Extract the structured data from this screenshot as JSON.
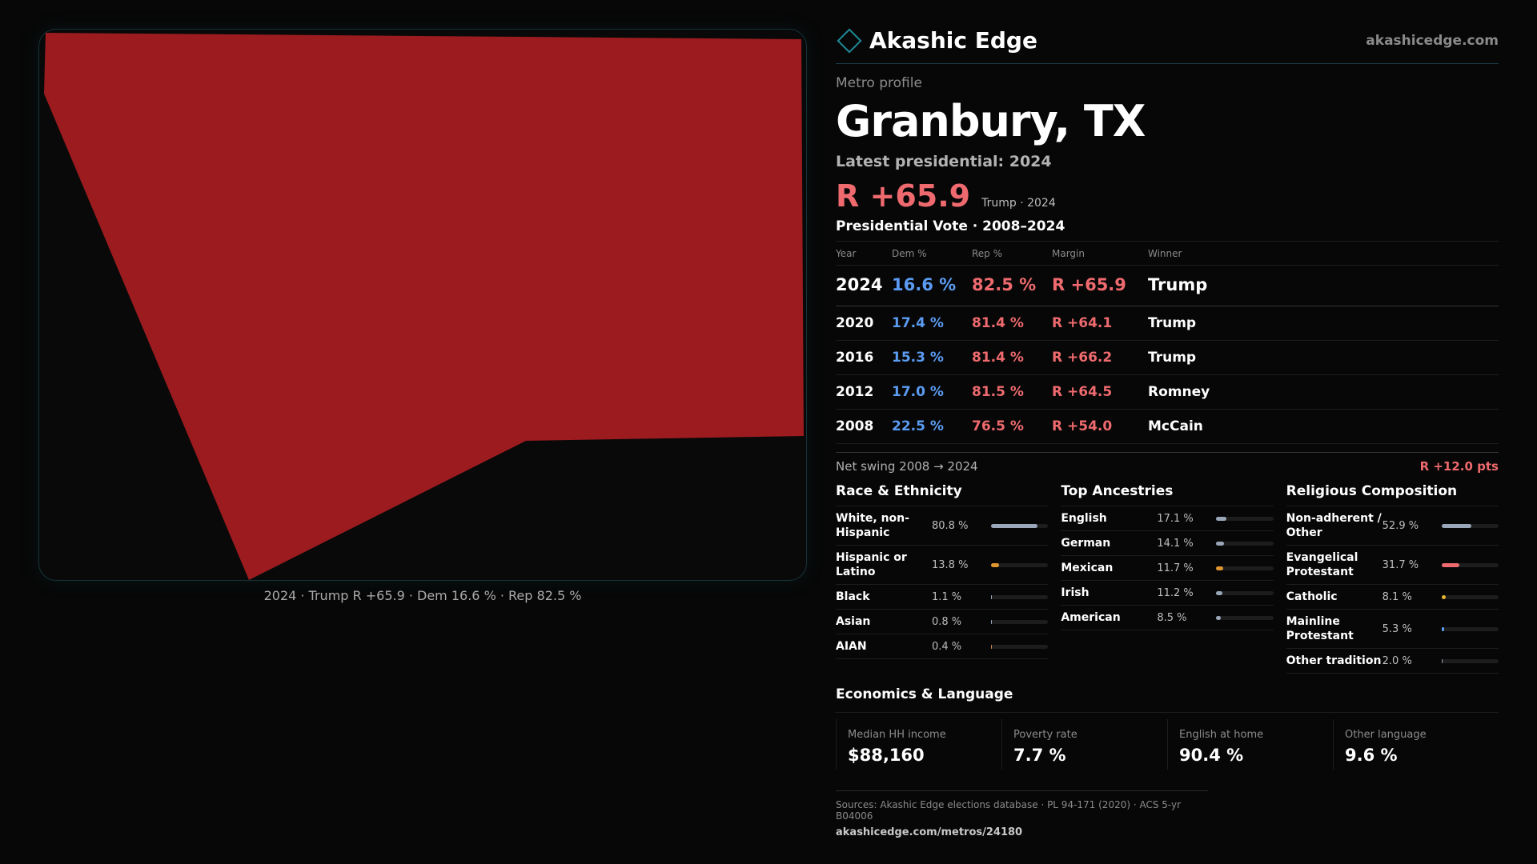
{
  "brand": {
    "name": "Akashic Edge",
    "url": "akashicedge.com"
  },
  "map": {
    "shape_color": "#9b1b1f",
    "caption": "2024 · Trump R +65.9 · Dem 16.6 % · Rep 82.5 %"
  },
  "header": {
    "eyebrow": "Metro profile",
    "title": "Granbury, TX",
    "latest_label": "Latest presidential: 2024",
    "margin": "R +65.9",
    "margin_sub": "Trump · 2024"
  },
  "votes": {
    "title": "Presidential Vote · 2008–2024",
    "columns": [
      "Year",
      "Dem %",
      "Rep %",
      "Margin",
      "Winner"
    ],
    "rows": [
      {
        "year": "2024",
        "dem": "16.6 %",
        "rep": "82.5 %",
        "margin": "R +65.9",
        "winner": "Trump"
      },
      {
        "year": "2020",
        "dem": "17.4 %",
        "rep": "81.4 %",
        "margin": "R +64.1",
        "winner": "Trump"
      },
      {
        "year": "2016",
        "dem": "15.3 %",
        "rep": "81.4 %",
        "margin": "R +66.2",
        "winner": "Trump"
      },
      {
        "year": "2012",
        "dem": "17.0 %",
        "rep": "81.5 %",
        "margin": "R +64.5",
        "winner": "Romney"
      },
      {
        "year": "2008",
        "dem": "22.5 %",
        "rep": "76.5 %",
        "margin": "R +54.0",
        "winner": "McCain"
      }
    ],
    "swing_label": "Net swing 2008 → 2024",
    "swing_value": "R +12.0 pts"
  },
  "race": {
    "title": "Race & Ethnicity",
    "items": [
      {
        "label": "White, non-Hispanic",
        "value": "80.8 %",
        "fraction": 0.808,
        "color": "#9aa7b8"
      },
      {
        "label": "Hispanic or Latino",
        "value": "13.8 %",
        "fraction": 0.138,
        "color": "#e0962e"
      },
      {
        "label": "Black",
        "value": "1.1 %",
        "fraction": 0.011,
        "color": "#9aa7b8"
      },
      {
        "label": "Asian",
        "value": "0.8 %",
        "fraction": 0.008,
        "color": "#9aa7b8"
      },
      {
        "label": "AIAN",
        "value": "0.4 %",
        "fraction": 0.004,
        "color": "#c98a4a"
      }
    ]
  },
  "ancestry": {
    "title": "Top Ancestries",
    "items": [
      {
        "label": "English",
        "value": "17.1 %",
        "fraction": 0.171,
        "color": "#9aa7b8"
      },
      {
        "label": "German",
        "value": "14.1 %",
        "fraction": 0.141,
        "color": "#9aa7b8"
      },
      {
        "label": "Mexican",
        "value": "11.7 %",
        "fraction": 0.117,
        "color": "#e0962e"
      },
      {
        "label": "Irish",
        "value": "11.2 %",
        "fraction": 0.112,
        "color": "#9aa7b8"
      },
      {
        "label": "American",
        "value": "8.5 %",
        "fraction": 0.085,
        "color": "#9aa7b8"
      }
    ]
  },
  "religion": {
    "title": "Religious Composition",
    "items": [
      {
        "label": "Non-adherent / Other",
        "value": "52.9 %",
        "fraction": 0.529,
        "color": "#9aa7b8"
      },
      {
        "label": "Evangelical Protestant",
        "value": "31.7 %",
        "fraction": 0.317,
        "color": "#ee6a6e"
      },
      {
        "label": "Catholic",
        "value": "8.1 %",
        "fraction": 0.081,
        "color": "#e8b52e"
      },
      {
        "label": "Mainline Protestant",
        "value": "5.3 %",
        "fraction": 0.053,
        "color": "#5b9cf2"
      },
      {
        "label": "Other tradition",
        "value": "2.0 %",
        "fraction": 0.02,
        "color": "#9aa7b8"
      }
    ]
  },
  "economics": {
    "title": "Economics & Language",
    "cells": [
      {
        "label": "Median HH income",
        "value": "$88,160"
      },
      {
        "label": "Poverty rate",
        "value": "7.7 %"
      },
      {
        "label": "English at home",
        "value": "90.4 %"
      },
      {
        "label": "Other language",
        "value": "9.6 %"
      }
    ]
  },
  "sources": {
    "line": "Sources: Akashic Edge elections database · PL 94-171 (2020) · ACS 5-yr B04006",
    "url": "akashicedge.com/metros/24180"
  }
}
